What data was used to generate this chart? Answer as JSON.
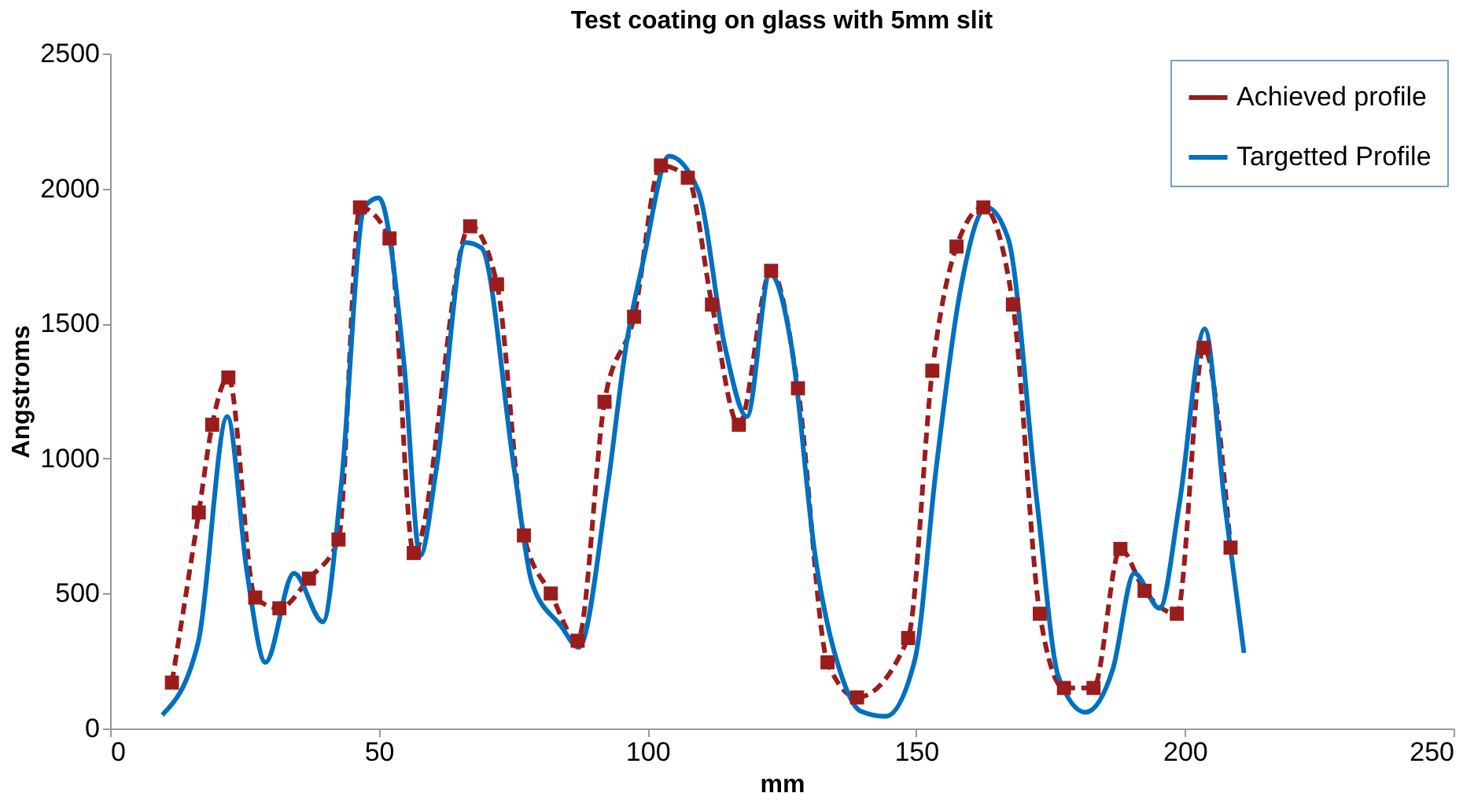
{
  "chart_data": {
    "type": "line",
    "title": "Test coating on glass with 5mm slit",
    "xlabel": "mm",
    "ylabel": "Angstroms",
    "xlim": [
      0,
      250
    ],
    "xticks": [
      0,
      50,
      100,
      150,
      200,
      250
    ],
    "ylim": [
      0,
      2500
    ],
    "yticks": [
      0,
      500,
      1000,
      1500,
      2000,
      2500
    ],
    "grid": false,
    "legend": "top right",
    "series": [
      {
        "name": "Achieved profile",
        "color": "#9b1c1c",
        "line_style": "dashed",
        "marker": "square",
        "x": [
          11.5,
          16.5,
          19,
          22,
          27,
          31.5,
          37,
          42.5,
          46.5,
          52,
          56.5,
          67,
          72,
          77,
          82,
          87,
          92,
          97.5,
          102.5,
          107.5,
          112,
          117,
          123,
          128,
          133.5,
          139,
          148.5,
          153,
          157.5,
          162.5,
          168,
          173,
          177.5,
          183,
          188,
          192.5,
          198.5,
          203.5,
          208.5
        ],
        "values": [
          170,
          800,
          1125,
          1300,
          485,
          445,
          555,
          700,
          1930,
          1815,
          650,
          1860,
          1645,
          715,
          500,
          325,
          1210,
          1525,
          2085,
          2040,
          1570,
          1125,
          1695,
          1260,
          245,
          115,
          335,
          1325,
          1785,
          1930,
          1570,
          425,
          150,
          150,
          665,
          510,
          425,
          1410,
          670
        ]
      },
      {
        "name": "Targetted Profile",
        "color": "#0070c0",
        "line_style": "solid",
        "marker": "none",
        "x": [
          9.7,
          16.4,
          21.8,
          25.5,
          28.9,
          34.2,
          39.6,
          43,
          47.3,
          50,
          54.7,
          57.7,
          60.7,
          66.1,
          69.1,
          75.2,
          78.5,
          83.9,
          87.2,
          92.6,
          96,
          99.3,
          104,
          109.4,
          114.4,
          118.5,
          122.8,
          126.8,
          131.2,
          136.2,
          139.6,
          144.3,
          149.7,
          153.7,
          158.1,
          163.1,
          167.1,
          172.5,
          176.5,
          181.5,
          186.6,
          190.6,
          195.3,
          199,
          203.7,
          207.4,
          211
        ],
        "values": [
          50,
          320,
          1155,
          575,
          245,
          575,
          395,
          900,
          1930,
          1965,
          1350,
          640,
          960,
          1800,
          1780,
          960,
          540,
          380,
          300,
          900,
          1415,
          1740,
          2120,
          1995,
          1415,
          1155,
          1685,
          1415,
          640,
          190,
          65,
          45,
          250,
          960,
          1610,
          1930,
          1815,
          835,
          190,
          60,
          220,
          575,
          445,
          835,
          1480,
          835,
          280
        ]
      }
    ]
  }
}
